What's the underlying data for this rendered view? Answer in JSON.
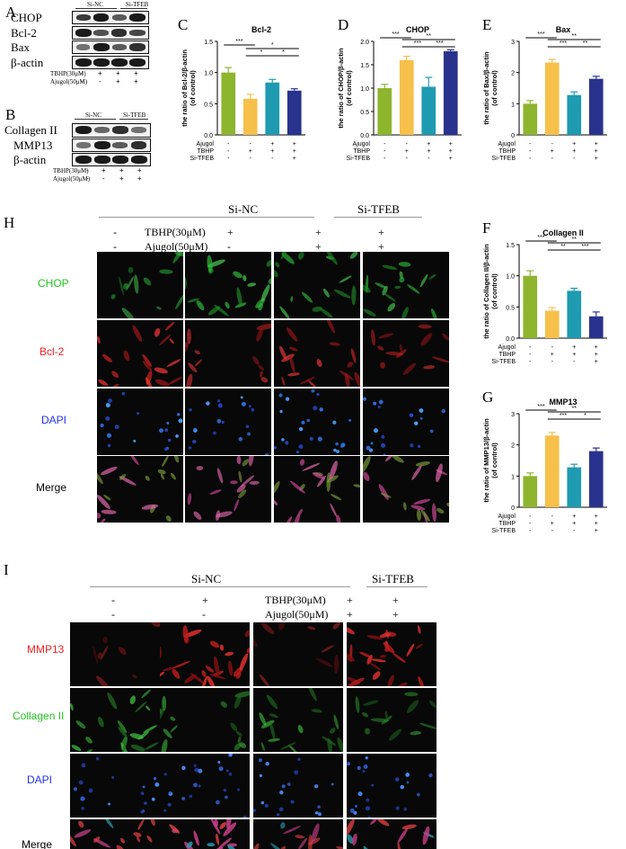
{
  "panels": {
    "A": "A",
    "B": "B",
    "C": "C",
    "D": "D",
    "E": "E",
    "F": "F",
    "G": "G",
    "H": "H",
    "I": "I"
  },
  "blot_A": {
    "rows": [
      "CHOP",
      "Bcl-2",
      "Bax",
      "β-actin"
    ],
    "groups": [
      "Si-NC",
      "Si-TFEB"
    ],
    "cond_rows": [
      {
        "label": "TBHP(30μM)",
        "signs": [
          "-",
          "+",
          "+",
          "+"
        ]
      },
      {
        "label": "Ajugol(50μM)",
        "signs": [
          "-",
          "-",
          "+",
          "+"
        ]
      }
    ]
  },
  "blot_B": {
    "rows": [
      "Collagen II",
      "MMP13",
      "β-actin"
    ],
    "groups": [
      "Si-NC",
      "Si-TFEB"
    ],
    "cond_rows": [
      {
        "label": "TBHP(30μM)",
        "signs": [
          "-",
          "+",
          "+",
          "+"
        ]
      },
      {
        "label": "Ajugol(50μM)",
        "signs": [
          "-",
          "-",
          "+",
          "+"
        ]
      }
    ]
  },
  "colors": {
    "green": "#8db52e",
    "yellow": "#f6c04b",
    "teal": "#1e9bb1",
    "navy": "#29338d"
  },
  "chart_data": [
    {
      "panel": "C",
      "type": "bar",
      "title": "Bcl-2",
      "ylabel": "the ratio of Bcl-2/β-actin\n(of control)",
      "ylim": [
        0,
        1.5
      ],
      "yticks": [
        "0.0",
        "0.5",
        "1.0",
        "1.5"
      ],
      "values": [
        1.0,
        0.58,
        0.84,
        0.71
      ],
      "errors": [
        0.08,
        0.07,
        0.05,
        0.03
      ],
      "cond_labels": [
        "Ajugol",
        "TBHP",
        "Si-TFEB"
      ],
      "cond_signs": [
        [
          "-",
          "-",
          "+",
          "+"
        ],
        [
          "-",
          "+",
          "+",
          "+"
        ],
        [
          "-",
          "-",
          "-",
          "+"
        ]
      ],
      "sig": [
        {
          "from": 0,
          "to": 1,
          "label": "***"
        },
        {
          "from": 1,
          "to": 3,
          "label": "*"
        },
        {
          "from": 1,
          "to": 2,
          "label": "*"
        },
        {
          "from": 2,
          "to": 3,
          "label": "*"
        }
      ]
    },
    {
      "panel": "D",
      "type": "bar",
      "title": "CHOP",
      "ylabel": "the ratio of CHOP/β-actin\n(of control)",
      "ylim": [
        0,
        2.0
      ],
      "yticks": [
        "0.0",
        "0.5",
        "1.0",
        "1.5",
        "2.0"
      ],
      "values": [
        1.0,
        1.6,
        1.03,
        1.79
      ],
      "errors": [
        0.08,
        0.08,
        0.2,
        0.03
      ],
      "cond_labels": [
        "Ajugol",
        "TBHP",
        "Si-TFEB"
      ],
      "cond_signs": [
        [
          "-",
          "-",
          "+",
          "+"
        ],
        [
          "-",
          "+",
          "+",
          "+"
        ],
        [
          "-",
          "-",
          "-",
          "+"
        ]
      ],
      "sig": [
        {
          "from": 0,
          "to": 1,
          "label": "***"
        },
        {
          "from": 1,
          "to": 3,
          "label": "**"
        },
        {
          "from": 1,
          "to": 2,
          "label": "***"
        },
        {
          "from": 2,
          "to": 3,
          "label": "***"
        }
      ]
    },
    {
      "panel": "E",
      "type": "bar",
      "title": "Bax",
      "ylabel": "the ratio of Bax/β-actin\n(of control)",
      "ylim": [
        0,
        3
      ],
      "yticks": [
        "0",
        "1",
        "2",
        "3"
      ],
      "values": [
        1.0,
        2.32,
        1.28,
        1.8
      ],
      "errors": [
        0.1,
        0.1,
        0.1,
        0.08
      ],
      "cond_labels": [
        "Ajugol",
        "TBHP",
        "Si-TFEB"
      ],
      "cond_signs": [
        [
          "-",
          "-",
          "+",
          "+"
        ],
        [
          "-",
          "+",
          "+",
          "+"
        ],
        [
          "-",
          "-",
          "-",
          "+"
        ]
      ],
      "sig": [
        {
          "from": 0,
          "to": 1,
          "label": "***"
        },
        {
          "from": 1,
          "to": 3,
          "label": "**"
        },
        {
          "from": 1,
          "to": 2,
          "label": "***"
        },
        {
          "from": 2,
          "to": 3,
          "label": "**"
        }
      ]
    },
    {
      "panel": "F",
      "type": "bar",
      "title": "Collagen II",
      "ylabel": "the ratio of Collagen II/β-actin\n(of control)",
      "ylim": [
        0,
        1.5
      ],
      "yticks": [
        "0.0",
        "0.5",
        "1.0",
        "1.5"
      ],
      "values": [
        1.0,
        0.44,
        0.76,
        0.35
      ],
      "errors": [
        0.08,
        0.05,
        0.04,
        0.07
      ],
      "cond_labels": [
        "Ajugol",
        "TBHP",
        "Si-TFEB"
      ],
      "cond_signs": [
        [
          "-",
          "-",
          "+",
          "+"
        ],
        [
          "-",
          "+",
          "+",
          "+"
        ],
        [
          "-",
          "-",
          "-",
          "+"
        ]
      ],
      "sig": [
        {
          "from": 0,
          "to": 1,
          "label": "***"
        },
        {
          "from": 1,
          "to": 3,
          "label": "**"
        },
        {
          "from": 1,
          "to": 2,
          "label": "**"
        },
        {
          "from": 2,
          "to": 3,
          "label": "***"
        }
      ]
    },
    {
      "panel": "G",
      "type": "bar",
      "title": "MMP13",
      "ylabel": "the ratio of MMP13/β-actin\n(of control)",
      "ylim": [
        0,
        3
      ],
      "yticks": [
        "0",
        "1",
        "2",
        "3"
      ],
      "values": [
        1.0,
        2.3,
        1.28,
        1.8
      ],
      "errors": [
        0.1,
        0.1,
        0.1,
        0.1
      ],
      "cond_labels": [
        "Ajugol",
        "TBHP",
        "Si-TFEB"
      ],
      "cond_signs": [
        [
          "-",
          "-",
          "+",
          "+"
        ],
        [
          "-",
          "+",
          "+",
          "+"
        ],
        [
          "-",
          "-",
          "-",
          "+"
        ]
      ],
      "sig": [
        {
          "from": 0,
          "to": 1,
          "label": "***"
        },
        {
          "from": 1,
          "to": 3,
          "label": "**"
        },
        {
          "from": 1,
          "to": 2,
          "label": "***"
        },
        {
          "from": 2,
          "to": 3,
          "label": "*"
        }
      ]
    }
  ],
  "panel_H": {
    "groups": [
      "Si-NC",
      "Si-TFEB"
    ],
    "tbhp_label": "TBHP(30μM)",
    "ajugol_label": "Ajugol(50μM)",
    "tbhp_signs": [
      "-",
      "+",
      "+",
      "+"
    ],
    "ajugol_signs": [
      "-",
      "-",
      "+",
      "+"
    ],
    "rows": [
      {
        "label": "CHOP",
        "color": "#22c322"
      },
      {
        "label": "Bcl-2",
        "color": "#ee2222"
      },
      {
        "label": "DAPI",
        "color": "#2233ee"
      },
      {
        "label": "Merge",
        "color": "#000000"
      }
    ]
  },
  "panel_I": {
    "groups": [
      "Si-NC",
      "Si-TFEB"
    ],
    "tbhp_label": "TBHP(30μM)",
    "ajugol_label": "Ajugol(50μM)",
    "tbhp_signs": [
      "-",
      "+",
      "+",
      "+"
    ],
    "ajugol_signs": [
      "-",
      "-",
      "+",
      "+"
    ],
    "rows": [
      {
        "label": "MMP13",
        "color": "#ee2222"
      },
      {
        "label": "Collagen II",
        "color": "#22c322"
      },
      {
        "label": "DAPI",
        "color": "#2233ee"
      },
      {
        "label": "Merge",
        "color": "#000000"
      }
    ]
  }
}
